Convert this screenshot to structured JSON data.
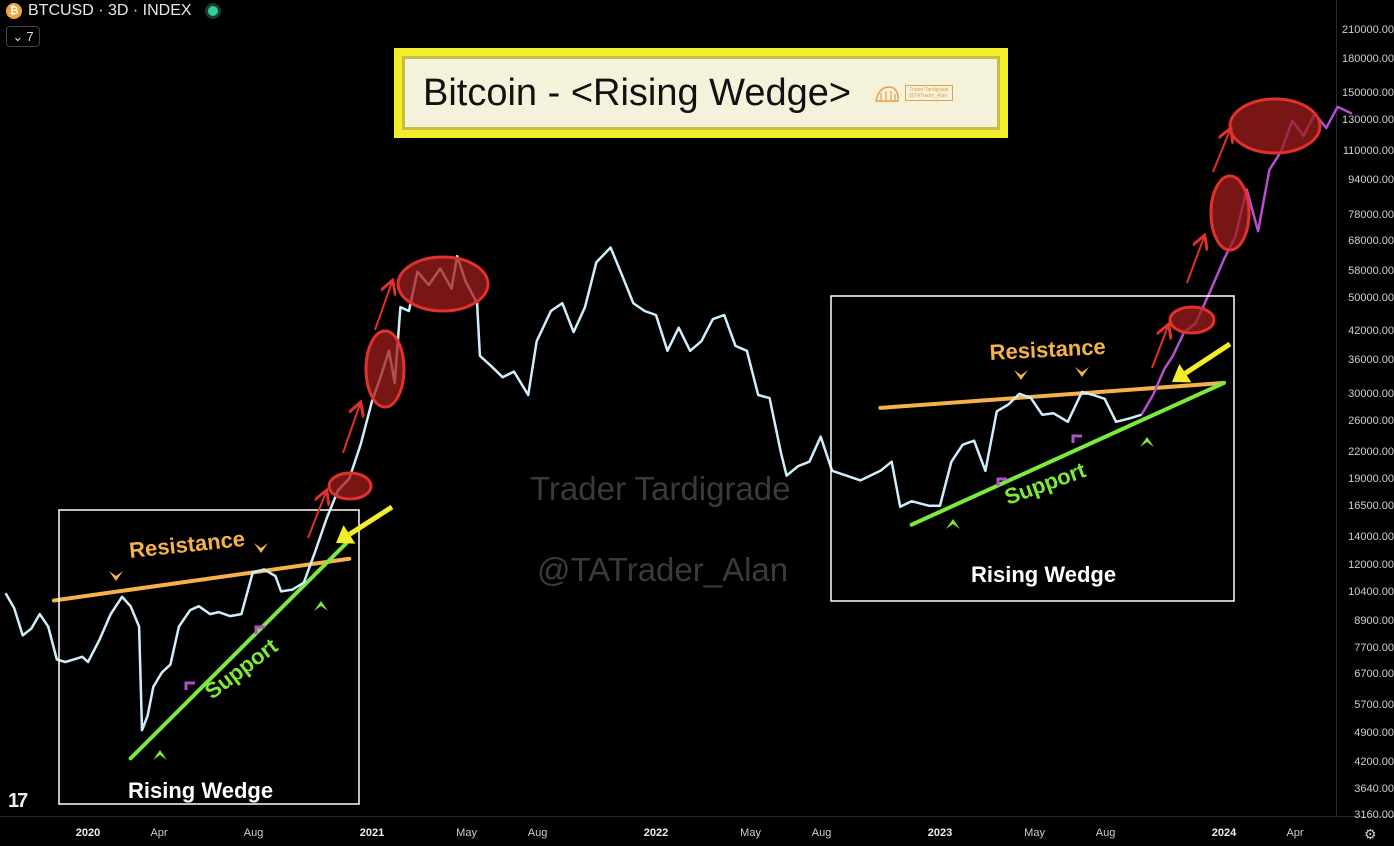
{
  "header": {
    "coin_badge": "₿",
    "symbol_line": "BTCUSD · 3D · INDEX",
    "collapse_count": "7",
    "chevron_glyph": "⌄"
  },
  "title_box": {
    "title": "Bitcoin - <Rising Wedge>",
    "logo_lines": [
      "Trader Tardigrade",
      "@TATrader_Alan"
    ]
  },
  "watermark": {
    "line1": "Trader Tardigrade",
    "line2": "@TATrader_Alan"
  },
  "annotations": {
    "resistance_label": "Resistance",
    "support_label": "Support",
    "wedge_label": "Rising Wedge"
  },
  "branding": {
    "tv_logo": "17"
  },
  "settings_glyph": "⚙",
  "colors": {
    "price_line": "#cfeefc",
    "projection_line": "#b44fd0",
    "resistance": "#f5b14a",
    "support": "#7bea3e",
    "ellipse": "#e0312d",
    "arrow_yellow": "#f3ee2b",
    "title_bg": "#f3ee2b"
  },
  "chart_data": {
    "type": "line",
    "title": "Bitcoin - <Rising Wedge>",
    "y_scale": "log",
    "y_ticks": [
      210000,
      180000,
      150000,
      130000,
      110000,
      94000,
      78000,
      68000,
      58000,
      50000,
      42000,
      36000,
      30000,
      26000,
      22000,
      19000,
      16500,
      14000,
      12000,
      10400,
      8900,
      7700,
      6700,
      5700,
      4900,
      4200,
      3640,
      3160
    ],
    "y_tick_labels": [
      "210000.00",
      "180000.00",
      "150000.00",
      "130000.00",
      "110000.00",
      "94000.00",
      "78000.00",
      "68000.00",
      "58000.00",
      "50000.00",
      "42000.00",
      "36000.00",
      "30000.00",
      "26000.00",
      "22000.00",
      "19000.00",
      "16500.00",
      "14000.00",
      "12000.00",
      "10400.00",
      "8900.00",
      "7700.00",
      "6700.00",
      "5700.00",
      "4900.00",
      "4200.00",
      "3640.00",
      "3160.00"
    ],
    "x_ticks": [
      {
        "label": "2020",
        "t": 2020.0,
        "bold": true
      },
      {
        "label": "Apr",
        "t": 2020.25,
        "bold": false
      },
      {
        "label": "Aug",
        "t": 2020.583,
        "bold": false
      },
      {
        "label": "2021",
        "t": 2021.0,
        "bold": true
      },
      {
        "label": "May",
        "t": 2021.333,
        "bold": false
      },
      {
        "label": "Aug",
        "t": 2021.583,
        "bold": false
      },
      {
        "label": "2022",
        "t": 2022.0,
        "bold": true
      },
      {
        "label": "May",
        "t": 2022.333,
        "bold": false
      },
      {
        "label": "Aug",
        "t": 2022.583,
        "bold": false
      },
      {
        "label": "2023",
        "t": 2023.0,
        "bold": true
      },
      {
        "label": "May",
        "t": 2023.333,
        "bold": false
      },
      {
        "label": "Aug",
        "t": 2023.583,
        "bold": false
      },
      {
        "label": "2024",
        "t": 2024.0,
        "bold": true
      },
      {
        "label": "Apr",
        "t": 2024.25,
        "bold": false
      }
    ],
    "series": [
      {
        "points": [
          [
            2019.71,
            10400
          ],
          [
            2019.74,
            9600
          ],
          [
            2019.77,
            8300
          ],
          [
            2019.8,
            8600
          ],
          [
            2019.83,
            9300
          ],
          [
            2019.86,
            8700
          ],
          [
            2019.89,
            7300
          ],
          [
            2019.92,
            7200
          ],
          [
            2019.95,
            7300
          ],
          [
            2019.98,
            7400
          ],
          [
            2020.0,
            7200
          ],
          [
            2020.04,
            8100
          ],
          [
            2020.08,
            9300
          ],
          [
            2020.12,
            10200
          ],
          [
            2020.15,
            9700
          ],
          [
            2020.18,
            8700
          ],
          [
            2020.19,
            5000
          ],
          [
            2020.21,
            5400
          ],
          [
            2020.23,
            6300
          ],
          [
            2020.26,
            6800
          ],
          [
            2020.29,
            7100
          ],
          [
            2020.32,
            8700
          ],
          [
            2020.36,
            9500
          ],
          [
            2020.39,
            9700
          ],
          [
            2020.43,
            9300
          ],
          [
            2020.46,
            9400
          ],
          [
            2020.5,
            9200
          ],
          [
            2020.54,
            9300
          ],
          [
            2020.58,
            11600
          ],
          [
            2020.62,
            11800
          ],
          [
            2020.66,
            11400
          ],
          [
            2020.68,
            10500
          ],
          [
            2020.72,
            10600
          ],
          [
            2020.76,
            11000
          ],
          [
            2020.8,
            13000
          ],
          [
            2020.84,
            15500
          ],
          [
            2020.88,
            18000
          ],
          [
            2020.92,
            19200
          ],
          [
            2020.96,
            23000
          ],
          [
            2021.0,
            29000
          ],
          [
            2021.03,
            33000
          ],
          [
            2021.06,
            38000
          ],
          [
            2021.08,
            32000
          ],
          [
            2021.1,
            48000
          ],
          [
            2021.13,
            47000
          ],
          [
            2021.16,
            58000
          ],
          [
            2021.2,
            54000
          ],
          [
            2021.24,
            59000
          ],
          [
            2021.28,
            53000
          ],
          [
            2021.3,
            63000
          ],
          [
            2021.33,
            55000
          ],
          [
            2021.37,
            49000
          ],
          [
            2021.38,
            37000
          ],
          [
            2021.42,
            35000
          ],
          [
            2021.46,
            33000
          ],
          [
            2021.5,
            34000
          ],
          [
            2021.55,
            30000
          ],
          [
            2021.58,
            40000
          ],
          [
            2021.63,
            47000
          ],
          [
            2021.67,
            49000
          ],
          [
            2021.71,
            42000
          ],
          [
            2021.75,
            48000
          ],
          [
            2021.79,
            61000
          ],
          [
            2021.84,
            66000
          ],
          [
            2021.88,
            57000
          ],
          [
            2021.92,
            49000
          ],
          [
            2021.96,
            47000
          ],
          [
            2022.0,
            46000
          ],
          [
            2022.04,
            38000
          ],
          [
            2022.08,
            43000
          ],
          [
            2022.12,
            38000
          ],
          [
            2022.16,
            40000
          ],
          [
            2022.2,
            45000
          ],
          [
            2022.24,
            46000
          ],
          [
            2022.28,
            39000
          ],
          [
            2022.32,
            38000
          ],
          [
            2022.36,
            30000
          ],
          [
            2022.4,
            29500
          ],
          [
            2022.44,
            22000
          ],
          [
            2022.46,
            19500
          ],
          [
            2022.5,
            20500
          ],
          [
            2022.54,
            21000
          ],
          [
            2022.58,
            24000
          ],
          [
            2022.62,
            20000
          ],
          [
            2022.67,
            19500
          ],
          [
            2022.72,
            19000
          ],
          [
            2022.79,
            20000
          ],
          [
            2022.83,
            21000
          ],
          [
            2022.86,
            16500
          ],
          [
            2022.9,
            17000
          ],
          [
            2022.96,
            16600
          ],
          [
            2023.0,
            16600
          ],
          [
            2023.04,
            21000
          ],
          [
            2023.08,
            23000
          ],
          [
            2023.12,
            23500
          ],
          [
            2023.16,
            20000
          ],
          [
            2023.2,
            27500
          ],
          [
            2023.24,
            28500
          ],
          [
            2023.28,
            30200
          ],
          [
            2023.32,
            29500
          ],
          [
            2023.36,
            27000
          ],
          [
            2023.4,
            27200
          ],
          [
            2023.45,
            26000
          ],
          [
            2023.5,
            30500
          ],
          [
            2023.54,
            30000
          ],
          [
            2023.58,
            29400
          ],
          [
            2023.62,
            26000
          ],
          [
            2023.67,
            26500
          ],
          [
            2023.71,
            27000
          ]
        ]
      },
      {
        "points": [
          [
            2023.71,
            27000
          ],
          [
            2023.75,
            30000
          ],
          [
            2023.79,
            34500
          ],
          [
            2023.82,
            37000
          ],
          [
            2023.86,
            42000
          ],
          [
            2023.9,
            44000
          ],
          [
            2023.95,
            52000
          ],
          [
            2024.0,
            62000
          ],
          [
            2024.04,
            70000
          ],
          [
            2024.08,
            90000
          ],
          [
            2024.12,
            72000
          ],
          [
            2024.16,
            100000
          ],
          [
            2024.2,
            110000
          ],
          [
            2024.24,
            130000
          ],
          [
            2024.28,
            120000
          ],
          [
            2024.32,
            135000
          ],
          [
            2024.36,
            125000
          ],
          [
            2024.4,
            140000
          ],
          [
            2024.45,
            135000
          ]
        ]
      }
    ],
    "trendlines": {
      "resistance_1": [
        [
          2019.88,
          10000
        ],
        [
          2020.92,
          12500
        ]
      ],
      "support_1": [
        [
          2020.15,
          4300
        ],
        [
          2020.92,
          13800
        ]
      ],
      "resistance_2": [
        [
          2022.79,
          28000
        ],
        [
          2024.0,
          32000
        ]
      ],
      "support_2": [
        [
          2022.9,
          15000
        ],
        [
          2024.0,
          32000
        ]
      ]
    }
  }
}
